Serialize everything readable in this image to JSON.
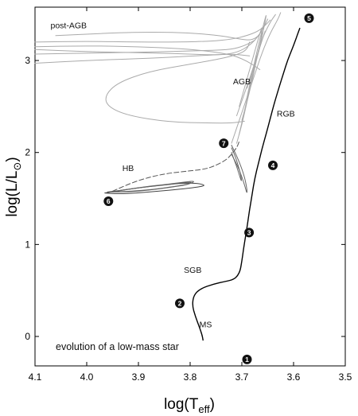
{
  "chart_data": {
    "type": "line",
    "title": "",
    "xlabel": "log(T",
    "xlabel_sub": "eff",
    "xlabel_close": ")",
    "ylabel": "log(L/L",
    "ylabel_sym": "⊙",
    "ylabel_close": ")",
    "xlim": [
      4.1,
      3.5
    ],
    "ylim": [
      -0.32,
      3.58
    ],
    "x_ticks": [
      4.1,
      4.0,
      3.9,
      3.8,
      3.7,
      3.6,
      3.5
    ],
    "x_tick_labels": [
      "4.1",
      "4.0",
      "3.9",
      "3.8",
      "3.7",
      "3.6",
      "3.5"
    ],
    "y_ticks": [
      0,
      1,
      2,
      3
    ],
    "y_tick_labels": [
      "0",
      "1",
      "2",
      "3"
    ],
    "grid": false,
    "annotation": "evolution of a low-mass star",
    "phase_labels": [
      {
        "text": "MS",
        "x": 3.77,
        "y": 0.1
      },
      {
        "text": "SGB",
        "x": 3.795,
        "y": 0.69
      },
      {
        "text": "RGB",
        "x": 3.615,
        "y": 2.39
      },
      {
        "text": "AGB",
        "x": 3.7,
        "y": 2.74
      },
      {
        "text": "HB",
        "x": 3.92,
        "y": 1.8
      },
      {
        "text": "post-AGB",
        "x": 4.035,
        "y": 3.35
      }
    ],
    "markers": [
      {
        "label": "1",
        "x": 3.69,
        "y": -0.25
      },
      {
        "label": "2",
        "x": 3.82,
        "y": 0.36
      },
      {
        "label": "3",
        "x": 3.686,
        "y": 1.13
      },
      {
        "label": "4",
        "x": 3.64,
        "y": 1.86
      },
      {
        "label": "5",
        "x": 3.57,
        "y": 3.46
      },
      {
        "label": "6",
        "x": 3.958,
        "y": 1.47
      },
      {
        "label": "7",
        "x": 3.735,
        "y": 2.1
      }
    ],
    "series": [
      {
        "role": "ms-sgb-rgb",
        "color": "#000000",
        "x": [
          3.775,
          3.777,
          3.782,
          3.79,
          3.796,
          3.793,
          3.78,
          3.755,
          3.73,
          3.716,
          3.708,
          3.703,
          3.7,
          3.697,
          3.693,
          3.689,
          3.685,
          3.68,
          3.675,
          3.668,
          3.661,
          3.653,
          3.645,
          3.637,
          3.628,
          3.619,
          3.611,
          3.603,
          3.597,
          3.592,
          3.588
        ],
        "y": [
          -0.04,
          0.02,
          0.1,
          0.22,
          0.34,
          0.45,
          0.52,
          0.57,
          0.6,
          0.62,
          0.66,
          0.72,
          0.82,
          0.94,
          1.08,
          1.22,
          1.38,
          1.55,
          1.72,
          1.88,
          2.04,
          2.2,
          2.37,
          2.54,
          2.71,
          2.87,
          3.01,
          3.12,
          3.21,
          3.29,
          3.35
        ]
      },
      {
        "role": "helium-flash-dashed",
        "color": "#555555",
        "dashed": true,
        "x": [
          3.95,
          3.9,
          3.85,
          3.8,
          3.77,
          3.75,
          3.73,
          3.72,
          3.71,
          3.705
        ],
        "y": [
          1.58,
          1.7,
          1.77,
          1.8,
          1.82,
          1.86,
          1.92,
          1.98,
          2.05,
          2.12
        ]
      },
      {
        "role": "horizontal-branch",
        "color": "#444444",
        "x": [
          3.965,
          3.93,
          3.895,
          3.86,
          3.83,
          3.8,
          3.78,
          3.77,
          3.79,
          3.82,
          3.86,
          3.9,
          3.94,
          3.965
        ],
        "y": [
          1.56,
          1.59,
          1.62,
          1.64,
          1.66,
          1.67,
          1.66,
          1.64,
          1.62,
          1.6,
          1.58,
          1.56,
          1.55,
          1.56
        ]
      },
      {
        "role": "horizontal-branch",
        "color": "#555555",
        "x": [
          3.96,
          3.92,
          3.88,
          3.845,
          3.815,
          3.795,
          3.805,
          3.84,
          3.88,
          3.92,
          3.96
        ],
        "y": [
          1.57,
          1.6,
          1.63,
          1.65,
          1.67,
          1.68,
          1.65,
          1.62,
          1.59,
          1.57,
          1.57
        ]
      },
      {
        "role": "horizontal-branch",
        "color": "#666666",
        "x": [
          3.955,
          3.91,
          3.87,
          3.835,
          3.81,
          3.79,
          3.8,
          3.83,
          3.87,
          3.91,
          3.955
        ],
        "y": [
          1.57,
          1.61,
          1.64,
          1.66,
          1.68,
          1.69,
          1.66,
          1.63,
          1.6,
          1.58,
          1.57
        ]
      },
      {
        "role": "early-agb-loop",
        "color": "#666666",
        "x": [
          3.72,
          3.705,
          3.695,
          3.69,
          3.69,
          3.695,
          3.705,
          3.715,
          3.72
        ],
        "y": [
          1.98,
          1.82,
          1.65,
          1.55,
          1.6,
          1.74,
          1.9,
          2.02,
          2.08
        ]
      },
      {
        "role": "early-agb-loop",
        "color": "#666666",
        "x": [
          3.72,
          3.71,
          3.703,
          3.7,
          3.703,
          3.712,
          3.72
        ],
        "y": [
          2.0,
          1.85,
          1.72,
          1.68,
          1.78,
          1.95,
          2.05
        ]
      },
      {
        "role": "agb",
        "color": "#aaaaaa",
        "x": [
          3.72,
          3.705,
          3.69,
          3.675,
          3.66,
          3.645,
          3.63,
          3.625
        ],
        "y": [
          2.1,
          2.35,
          2.6,
          2.85,
          3.1,
          3.3,
          3.45,
          3.52
        ]
      },
      {
        "role": "agb",
        "color": "#aaaaaa",
        "x": [
          3.71,
          3.7,
          3.69,
          3.68,
          3.67,
          3.66,
          3.645,
          3.635
        ],
        "y": [
          2.1,
          2.3,
          2.55,
          2.8,
          3.05,
          3.25,
          3.42,
          3.5
        ]
      },
      {
        "role": "agb",
        "color": "#aaaaaa",
        "x": [
          3.705,
          3.695,
          3.685,
          3.675,
          3.665,
          3.655
        ],
        "y": [
          2.2,
          2.45,
          2.7,
          2.95,
          3.15,
          3.32
        ]
      },
      {
        "role": "agb",
        "color": "#aaaaaa",
        "x": [
          3.7,
          3.69,
          3.68,
          3.672,
          3.665,
          3.66
        ],
        "y": [
          2.35,
          2.55,
          2.78,
          3.0,
          3.18,
          3.3
        ]
      },
      {
        "role": "thermal-pulse-spike",
        "color": "#aaaaaa",
        "x": [
          3.71,
          3.685,
          3.665,
          3.655,
          3.652,
          3.66,
          3.675,
          3.69
        ],
        "y": [
          2.4,
          2.8,
          3.15,
          3.42,
          3.52,
          3.35,
          3.0,
          2.6
        ]
      },
      {
        "role": "thermal-pulse-spike",
        "color": "#aaaaaa",
        "x": [
          3.705,
          3.69,
          3.675,
          3.665,
          3.66,
          3.662,
          3.672,
          3.69
        ],
        "y": [
          2.5,
          2.8,
          3.1,
          3.3,
          3.38,
          3.25,
          3.0,
          2.7
        ]
      },
      {
        "role": "post-agb",
        "color": "#aaaaaa",
        "x": [
          4.1,
          4.0,
          3.9,
          3.82,
          3.76,
          3.72,
          3.69,
          3.668,
          3.655,
          3.645
        ],
        "y": [
          3.2,
          3.21,
          3.2,
          3.2,
          3.21,
          3.23,
          3.27,
          3.32,
          3.38,
          3.44
        ]
      },
      {
        "role": "post-agb",
        "color": "#aaaaaa",
        "x": [
          4.1,
          4.0,
          3.9,
          3.82,
          3.76,
          3.72,
          3.7,
          3.68,
          3.665
        ],
        "y": [
          3.15,
          3.16,
          3.15,
          3.13,
          3.1,
          3.06,
          3.02,
          2.96,
          2.9
        ]
      },
      {
        "role": "post-agb",
        "color": "#aaaaaa",
        "x": [
          4.1,
          4.0,
          3.9,
          3.82,
          3.76,
          3.72,
          3.695,
          3.675
        ],
        "y": [
          3.07,
          3.08,
          3.09,
          3.1,
          3.11,
          3.12,
          3.16,
          3.22
        ]
      },
      {
        "role": "post-agb",
        "color": "#aaaaaa",
        "x": [
          4.1,
          4.0,
          3.9,
          3.82,
          3.76,
          3.72,
          3.7,
          3.685
        ],
        "y": [
          2.97,
          3.0,
          3.02,
          3.04,
          3.06,
          3.07,
          3.06,
          3.05
        ]
      },
      {
        "role": "post-agb",
        "color": "#aaaaaa",
        "x": [
          4.06,
          3.95,
          3.87,
          3.8,
          3.74,
          3.7,
          3.68,
          3.665,
          3.655
        ],
        "y": [
          3.27,
          3.3,
          3.31,
          3.3,
          3.27,
          3.23,
          3.22,
          3.28,
          3.4
        ]
      },
      {
        "role": "post-agb",
        "color": "#aaaaaa",
        "x": [
          4.1,
          4.02,
          3.94,
          3.86,
          3.8,
          3.75,
          3.71,
          3.68,
          3.66,
          3.65
        ],
        "y": [
          3.12,
          3.1,
          3.09,
          3.08,
          3.07,
          3.06,
          3.08,
          3.18,
          3.33,
          3.45
        ]
      },
      {
        "role": "post-agb-loop",
        "color": "#aaaaaa",
        "x": [
          3.695,
          3.72,
          3.76,
          3.84,
          3.92,
          3.96,
          3.965,
          3.94,
          3.88,
          3.8,
          3.74,
          3.705,
          3.69,
          3.685
        ],
        "y": [
          2.34,
          2.32,
          2.32,
          2.33,
          2.4,
          2.5,
          2.62,
          2.76,
          2.88,
          2.96,
          3.02,
          3.07,
          3.12,
          3.2
        ]
      }
    ]
  }
}
